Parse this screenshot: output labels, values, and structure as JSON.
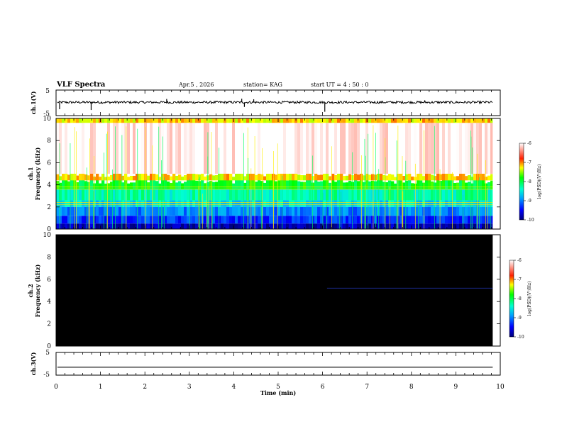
{
  "header": {
    "title": "VLF Spectra",
    "date": "Apr.5 , 2026",
    "station": "station= KAG",
    "start": "start  UT =   4 : 50 : 0"
  },
  "chart_data": [
    {
      "type": "line",
      "name": "ch1-waveform",
      "ylabel": "ch.1(V)",
      "ylim": [
        -5,
        5
      ],
      "yticks": [
        "5",
        "-5"
      ],
      "xlim": [
        0,
        10
      ],
      "baseline": 0.2,
      "spikes": [
        {
          "t": 0.08,
          "v": -2.5
        },
        {
          "t": 0.79,
          "v": -2.8
        },
        {
          "t": 2.49,
          "v": 1.5
        },
        {
          "t": 4.18,
          "v": 1.6
        },
        {
          "t": 4.24,
          "v": -1.6
        },
        {
          "t": 4.45,
          "v": 1.4
        },
        {
          "t": 6.05,
          "v": -3.5
        },
        {
          "t": 8.3,
          "v": 1.0
        }
      ]
    },
    {
      "type": "heatmap",
      "name": "ch1-spectrogram",
      "ylabel_lines": [
        "ch.1",
        "Frequency  (kHz)"
      ],
      "ylim": [
        0,
        10
      ],
      "yticks": [
        "0",
        "2",
        "4",
        "6",
        "8",
        "10"
      ],
      "xlim": [
        0,
        10
      ],
      "data_end_min": 9.83,
      "colorbar": {
        "label": "log(PSD)(V²/Hz)",
        "ticks": [
          "-6",
          "-7",
          "-8",
          "-9",
          "-10"
        ],
        "range": [
          -10,
          -6
        ]
      },
      "bands": [
        {
          "f0": 0,
          "f1": 0.5,
          "level": -9.8
        },
        {
          "f0": 0.5,
          "f1": 1.2,
          "level": -9.3
        },
        {
          "f0": 1.2,
          "f1": 2.0,
          "level": -9.0
        },
        {
          "f0": 2.0,
          "f1": 2.6,
          "level": -8.6
        },
        {
          "f0": 2.6,
          "f1": 3.6,
          "level": -8.3
        },
        {
          "f0": 3.6,
          "f1": 4.4,
          "level": -7.9
        },
        {
          "f0": 4.4,
          "f1": 5.0,
          "level": -7.2
        },
        {
          "f0": 5.0,
          "f1": 9.6,
          "level": -6.0
        },
        {
          "f0": 9.6,
          "f1": 10.0,
          "level": -7.2
        }
      ],
      "lines_khz": [
        2.2,
        2.4,
        3.6,
        3.8
      ]
    },
    {
      "type": "heatmap",
      "name": "ch2-spectrogram",
      "ylabel_lines": [
        "ch.2",
        "Frequency  (kHz)"
      ],
      "ylim": [
        0,
        10
      ],
      "yticks": [
        "0",
        "2",
        "4",
        "6",
        "8",
        "10"
      ],
      "xlim": [
        0,
        10
      ],
      "data_end_min": 9.83,
      "colorbar": {
        "label": "log(PSD)(V²/Hz)",
        "ticks": [
          "-6",
          "-7",
          "-8",
          "-9",
          "-10"
        ],
        "range": [
          -10,
          -6
        ]
      },
      "line_khz": 5.2,
      "line_start_min": 6.1
    },
    {
      "type": "line",
      "name": "ch3-waveform",
      "ylabel": "ch.3(V)",
      "ylim": [
        -5,
        5
      ],
      "yticks": [
        "5",
        "-5"
      ],
      "xlim": [
        0,
        10
      ],
      "baseline": -1.5
    }
  ],
  "xaxis": {
    "label": "Time  (min)",
    "ticks": [
      "0",
      "1",
      "2",
      "3",
      "4",
      "5",
      "6",
      "7",
      "8",
      "9",
      "10"
    ]
  },
  "colors": {
    "bg": "#ffffff",
    "axis": "#000000",
    "ch2_fill": "#000000",
    "ch2_line": "#1a2a8a"
  }
}
